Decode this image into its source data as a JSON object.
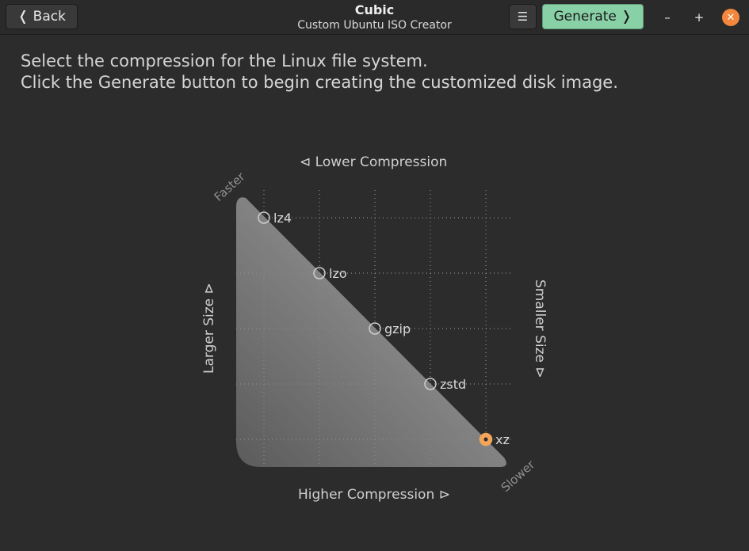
{
  "header": {
    "back_label": "❬ Back",
    "title": "Cubic",
    "subtitle": "Custom Ubuntu ISO Creator",
    "menu_glyph": "☰",
    "generate_label": "Generate ❭",
    "minimize_glyph": "–",
    "maximize_glyph": "+",
    "close_glyph": "✕"
  },
  "instructions": {
    "line1": "Select the compression for the Linux file system.",
    "line2": "Click the Generate button to begin creating the customized disk image."
  },
  "chart": {
    "top_label": "⊲  Lower Compression",
    "bottom_label": "Higher Compression  ⊳",
    "left_label": "Larger Size  ⊳",
    "right_label": "Smaller Size  ⊳",
    "faster_label": "Faster",
    "slower_label": "Slower",
    "options": [
      {
        "name": "lz4",
        "selected": false
      },
      {
        "name": "lzo",
        "selected": false
      },
      {
        "name": "gzip",
        "selected": false
      },
      {
        "name": "zstd",
        "selected": false
      },
      {
        "name": "xz",
        "selected": true
      }
    ],
    "selected_color": "#f5a55a"
  }
}
